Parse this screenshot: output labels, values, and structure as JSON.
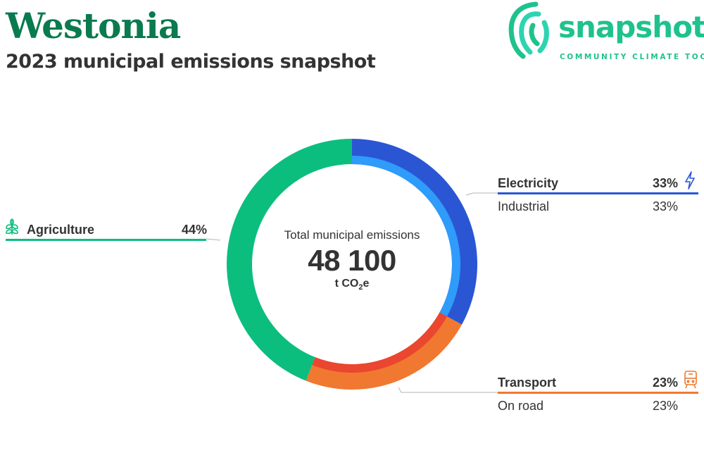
{
  "header": {
    "title": "Westonia",
    "subtitle": "2023 municipal emissions snapshot"
  },
  "logo": {
    "wordmark": "snapshot",
    "tagline": "COMMUNITY CLIMATE TOOL",
    "color": "#1fc28d"
  },
  "center": {
    "label": "Total municipal emissions",
    "value": "48 100",
    "unit_prefix": "t CO",
    "unit_sub": "2",
    "unit_suffix": "e"
  },
  "legend": {
    "agriculture": {
      "label": "Agriculture",
      "pct": "44%",
      "icon": "sprout-icon"
    },
    "electricity": {
      "label": "Electricity",
      "pct": "33%",
      "icon": "lightning-icon"
    },
    "industrial": {
      "label": "Industrial",
      "pct": "33%"
    },
    "transport": {
      "label": "Transport",
      "pct": "23%",
      "icon": "train-icon"
    },
    "on_road": {
      "label": "On road",
      "pct": "23%"
    }
  },
  "chart_data": {
    "type": "pie",
    "title": "Total municipal emissions",
    "total": 48100,
    "unit": "t CO2e",
    "series": [
      {
        "name": "Electricity",
        "value": 33,
        "color": "#2a56d4",
        "subcategories": [
          {
            "name": "Industrial",
            "value": 33,
            "color": "#2f9bfa"
          }
        ]
      },
      {
        "name": "Transport",
        "value": 23,
        "color": "#f07830",
        "subcategories": [
          {
            "name": "On road",
            "value": 23,
            "color": "#ea4630"
          }
        ]
      },
      {
        "name": "Agriculture",
        "value": 44,
        "color": "#0cbe7e",
        "subcategories": []
      }
    ]
  }
}
